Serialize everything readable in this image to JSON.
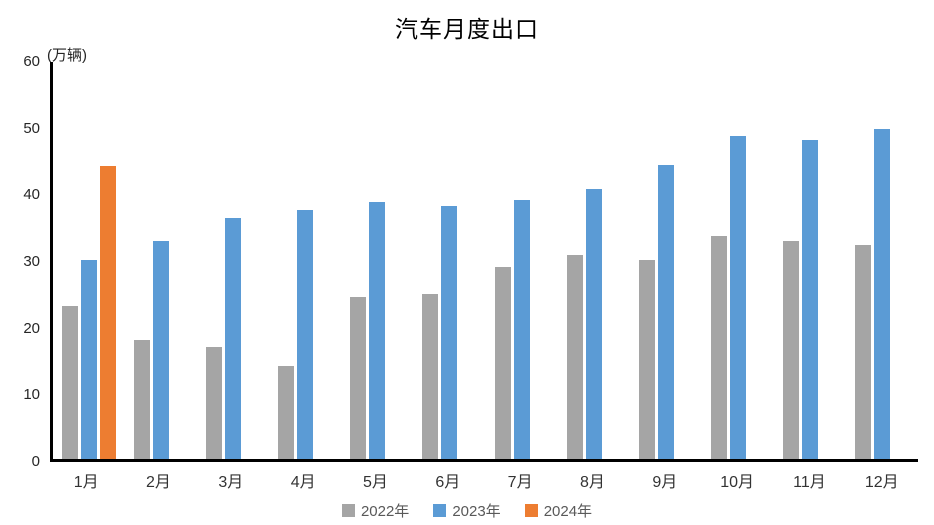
{
  "chart_data": {
    "type": "bar",
    "title": "汽车月度出口",
    "ylabel": "(万辆)",
    "xlabel": "",
    "ylim": [
      0,
      60
    ],
    "yticks": [
      0,
      10,
      20,
      30,
      40,
      50,
      60
    ],
    "grid": false,
    "legend_position": "bottom",
    "categories": [
      "1月",
      "2月",
      "3月",
      "4月",
      "5月",
      "6月",
      "7月",
      "8月",
      "9月",
      "10月",
      "11月",
      "12月"
    ],
    "series": [
      {
        "name": "2022年",
        "color": "#A5A5A5",
        "values": [
          23.1,
          18.0,
          17.0,
          14.1,
          24.5,
          24.9,
          29.0,
          30.8,
          30.1,
          33.7,
          32.9,
          32.3
        ]
      },
      {
        "name": "2023年",
        "color": "#5B9BD5",
        "values": [
          30.1,
          32.9,
          36.4,
          37.6,
          38.9,
          38.2,
          39.2,
          40.8,
          44.4,
          48.8,
          48.2,
          49.9
        ]
      },
      {
        "name": "2024年",
        "color": "#ED7D31",
        "values": [
          44.3,
          null,
          null,
          null,
          null,
          null,
          null,
          null,
          null,
          null,
          null,
          null
        ]
      }
    ],
    "axis_color": "#000000",
    "background_color": "#FFFFFF"
  }
}
